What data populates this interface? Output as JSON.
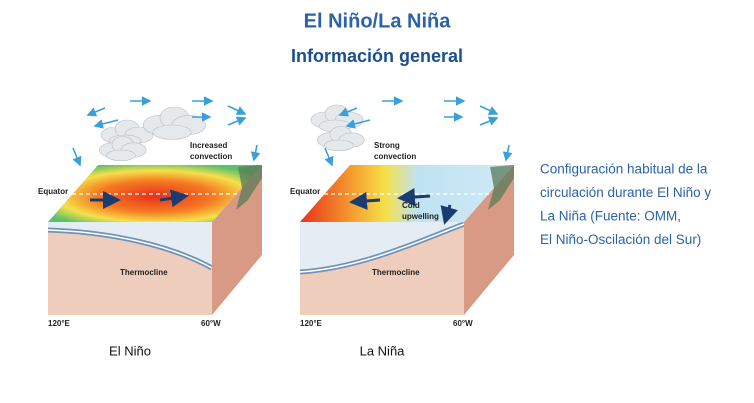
{
  "header": {
    "title": "El Niño/La Niña",
    "subtitle": "Información general"
  },
  "panels": [
    {
      "convection": [
        "Increased",
        "convection"
      ],
      "equator": "Equator",
      "thermocline": "Thermocline",
      "lon_west": "120°E",
      "lon_east": "60°W",
      "caption": "El Niño"
    },
    {
      "convection": [
        "Strong",
        "convection"
      ],
      "upwelling": [
        "Cold",
        "upwelling"
      ],
      "equator": "Equator",
      "thermocline": "Thermocline",
      "lon_west": "120°E",
      "lon_east": "60°W",
      "caption": "La Niña"
    }
  ],
  "description": [
    "Configuración habitual de la",
    "circulación durante El Niño y",
    "La Niña (Fuente: OMM,",
    "El Niño-Oscilación del Sur)"
  ]
}
